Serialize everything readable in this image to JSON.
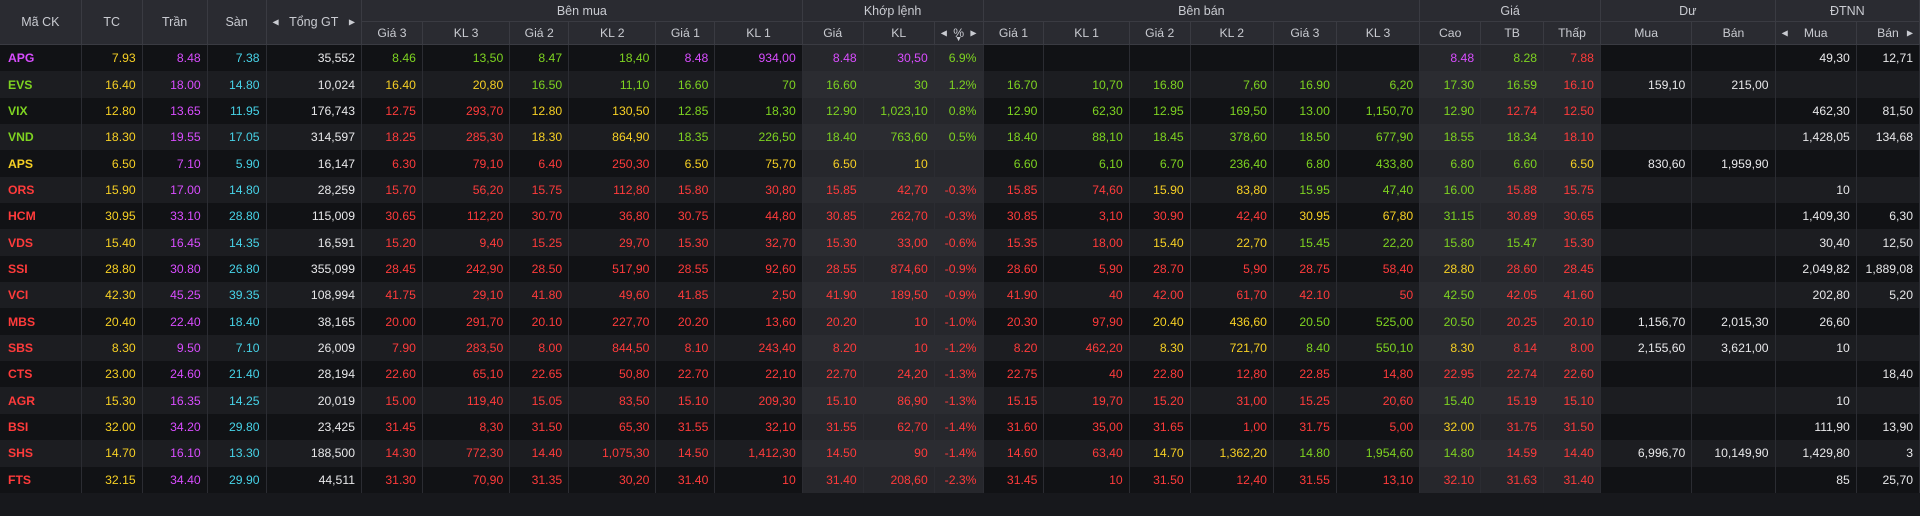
{
  "headers": {
    "ma_ck": "Mã CK",
    "tc": "TC",
    "tran": "Trần",
    "san": "Sàn",
    "tong_gt": "Tổng GT",
    "ben_mua": "Bên mua",
    "khop_lenh": "Khớp lệnh",
    "ben_ban": "Bên bán",
    "gia_group": "Giá",
    "du": "Dư",
    "dtnn": "ĐTNN",
    "gia3": "Giá 3",
    "kl3": "KL 3",
    "gia2": "Giá 2",
    "kl2": "KL 2",
    "gia1": "Giá 1",
    "kl1": "KL 1",
    "gia": "Giá",
    "kl": "KL",
    "pct": "%",
    "cao": "Cao",
    "tb": "TB",
    "thap": "Thấp",
    "mua": "Mua",
    "ban": "Bán",
    "arrow_left": "◀",
    "arrow_right": "▶",
    "sort_down": "▼"
  },
  "colors": {
    "up": "#7ed321",
    "down": "#ff3b3b",
    "ref": "#f7d024",
    "ceil": "#d94dff",
    "floor": "#47d3e8"
  },
  "rows": [
    [
      "APG",
      "7.93",
      "8.48",
      "7.38",
      "35,552",
      "8.46",
      "13,50",
      "8.47",
      "18,40",
      "8.48",
      "934,00",
      "8.48",
      "30,50",
      "6.9%",
      "",
      "",
      "",
      "",
      "",
      "",
      "8.48",
      "8.28",
      "7.88",
      "",
      "",
      "49,30",
      "12,71"
    ],
    [
      "EVS",
      "16.40",
      "18.00",
      "14.80",
      "10,024",
      "16.40",
      "20,80",
      "16.50",
      "11,10",
      "16.60",
      "70",
      "16.60",
      "30",
      "1.2%",
      "16.70",
      "10,70",
      "16.80",
      "7,60",
      "16.90",
      "6,20",
      "17.30",
      "16.59",
      "16.10",
      "159,10",
      "215,00",
      "",
      ""
    ],
    [
      "VIX",
      "12.80",
      "13.65",
      "11.95",
      "176,743",
      "12.75",
      "293,70",
      "12.80",
      "130,50",
      "12.85",
      "18,30",
      "12.90",
      "1,023,10",
      "0.8%",
      "12.90",
      "62,30",
      "12.95",
      "169,50",
      "13.00",
      "1,150,70",
      "12.90",
      "12.74",
      "12.50",
      "",
      "",
      "462,30",
      "81,50"
    ],
    [
      "VND",
      "18.30",
      "19.55",
      "17.05",
      "314,597",
      "18.25",
      "285,30",
      "18.30",
      "864,90",
      "18.35",
      "226,50",
      "18.40",
      "763,60",
      "0.5%",
      "18.40",
      "88,10",
      "18.45",
      "378,60",
      "18.50",
      "677,90",
      "18.55",
      "18.34",
      "18.10",
      "",
      "",
      "1,428,05",
      "134,68"
    ],
    [
      "APS",
      "6.50",
      "7.10",
      "5.90",
      "16,147",
      "6.30",
      "79,10",
      "6.40",
      "250,30",
      "6.50",
      "75,70",
      "6.50",
      "10",
      "",
      "6.60",
      "6,10",
      "6.70",
      "236,40",
      "6.80",
      "433,80",
      "6.80",
      "6.60",
      "6.50",
      "830,60",
      "1,959,90",
      "",
      ""
    ],
    [
      "ORS",
      "15.90",
      "17.00",
      "14.80",
      "28,259",
      "15.70",
      "56,20",
      "15.75",
      "112,80",
      "15.80",
      "30,80",
      "15.85",
      "42,70",
      "-0.3%",
      "15.85",
      "74,60",
      "15.90",
      "83,80",
      "15.95",
      "47,40",
      "16.00",
      "15.88",
      "15.75",
      "",
      "",
      "10",
      ""
    ],
    [
      "HCM",
      "30.95",
      "33.10",
      "28.80",
      "115,009",
      "30.65",
      "112,20",
      "30.70",
      "36,80",
      "30.75",
      "44,80",
      "30.85",
      "262,70",
      "-0.3%",
      "30.85",
      "3,10",
      "30.90",
      "42,40",
      "30.95",
      "67,80",
      "31.15",
      "30.89",
      "30.65",
      "",
      "",
      "1,409,30",
      "6,30"
    ],
    [
      "VDS",
      "15.40",
      "16.45",
      "14.35",
      "16,591",
      "15.20",
      "9,40",
      "15.25",
      "29,70",
      "15.30",
      "32,70",
      "15.30",
      "33,00",
      "-0.6%",
      "15.35",
      "18,00",
      "15.40",
      "22,70",
      "15.45",
      "22,20",
      "15.80",
      "15.47",
      "15.30",
      "",
      "",
      "30,40",
      "12,50"
    ],
    [
      "SSI",
      "28.80",
      "30.80",
      "26.80",
      "355,099",
      "28.45",
      "242,90",
      "28.50",
      "517,90",
      "28.55",
      "92,60",
      "28.55",
      "874,60",
      "-0.9%",
      "28.60",
      "5,90",
      "28.70",
      "5,90",
      "28.75",
      "58,40",
      "28.80",
      "28.60",
      "28.45",
      "",
      "",
      "2,049,82",
      "1,889,08"
    ],
    [
      "VCI",
      "42.30",
      "45.25",
      "39.35",
      "108,994",
      "41.75",
      "29,10",
      "41.80",
      "49,60",
      "41.85",
      "2,50",
      "41.90",
      "189,50",
      "-0.9%",
      "41.90",
      "40",
      "42.00",
      "61,70",
      "42.10",
      "50",
      "42.50",
      "42.05",
      "41.60",
      "",
      "",
      "202,80",
      "5,20"
    ],
    [
      "MBS",
      "20.40",
      "22.40",
      "18.40",
      "38,165",
      "20.00",
      "291,70",
      "20.10",
      "227,70",
      "20.20",
      "13,60",
      "20.20",
      "10",
      "-1.0%",
      "20.30",
      "97,90",
      "20.40",
      "436,60",
      "20.50",
      "525,00",
      "20.50",
      "20.25",
      "20.10",
      "1,156,70",
      "2,015,30",
      "26,60",
      ""
    ],
    [
      "SBS",
      "8.30",
      "9.50",
      "7.10",
      "26,009",
      "7.90",
      "283,50",
      "8.00",
      "844,50",
      "8.10",
      "243,40",
      "8.20",
      "10",
      "-1.2%",
      "8.20",
      "462,20",
      "8.30",
      "721,70",
      "8.40",
      "550,10",
      "8.30",
      "8.14",
      "8.00",
      "2,155,60",
      "3,621,00",
      "10",
      ""
    ],
    [
      "CTS",
      "23.00",
      "24.60",
      "21.40",
      "28,194",
      "22.60",
      "65,10",
      "22.65",
      "50,80",
      "22.70",
      "22,10",
      "22.70",
      "24,20",
      "-1.3%",
      "22.75",
      "40",
      "22.80",
      "12,80",
      "22.85",
      "14,80",
      "22.95",
      "22.74",
      "22.60",
      "",
      "",
      "",
      "18,40"
    ],
    [
      "AGR",
      "15.30",
      "16.35",
      "14.25",
      "20,019",
      "15.00",
      "119,40",
      "15.05",
      "83,50",
      "15.10",
      "209,30",
      "15.10",
      "86,90",
      "-1.3%",
      "15.15",
      "19,70",
      "15.20",
      "31,00",
      "15.25",
      "20,60",
      "15.40",
      "15.19",
      "15.10",
      "",
      "",
      "10",
      ""
    ],
    [
      "BSI",
      "32.00",
      "34.20",
      "29.80",
      "23,425",
      "31.45",
      "8,30",
      "31.50",
      "65,30",
      "31.55",
      "32,10",
      "31.55",
      "62,70",
      "-1.4%",
      "31.60",
      "35,00",
      "31.65",
      "1,00",
      "31.75",
      "5,00",
      "32.00",
      "31.75",
      "31.50",
      "",
      "",
      "111,90",
      "13,90"
    ],
    [
      "SHS",
      "14.70",
      "16.10",
      "13.30",
      "188,500",
      "14.30",
      "772,30",
      "14.40",
      "1,075,30",
      "14.50",
      "1,412,30",
      "14.50",
      "90",
      "-1.4%",
      "14.60",
      "63,40",
      "14.70",
      "1,362,20",
      "14.80",
      "1,954,60",
      "14.80",
      "14.59",
      "14.40",
      "6,996,70",
      "10,149,90",
      "1,429,80",
      "3"
    ],
    [
      "FTS",
      "32.15",
      "34.40",
      "29.90",
      "44,511",
      "31.30",
      "70,90",
      "31.35",
      "30,20",
      "31.40",
      "10",
      "31.40",
      "208,60",
      "-2.3%",
      "31.45",
      "10",
      "31.50",
      "12,40",
      "31.55",
      "13,10",
      "32.10",
      "31.63",
      "31.40",
      "",
      "",
      "85",
      "25,70"
    ]
  ]
}
